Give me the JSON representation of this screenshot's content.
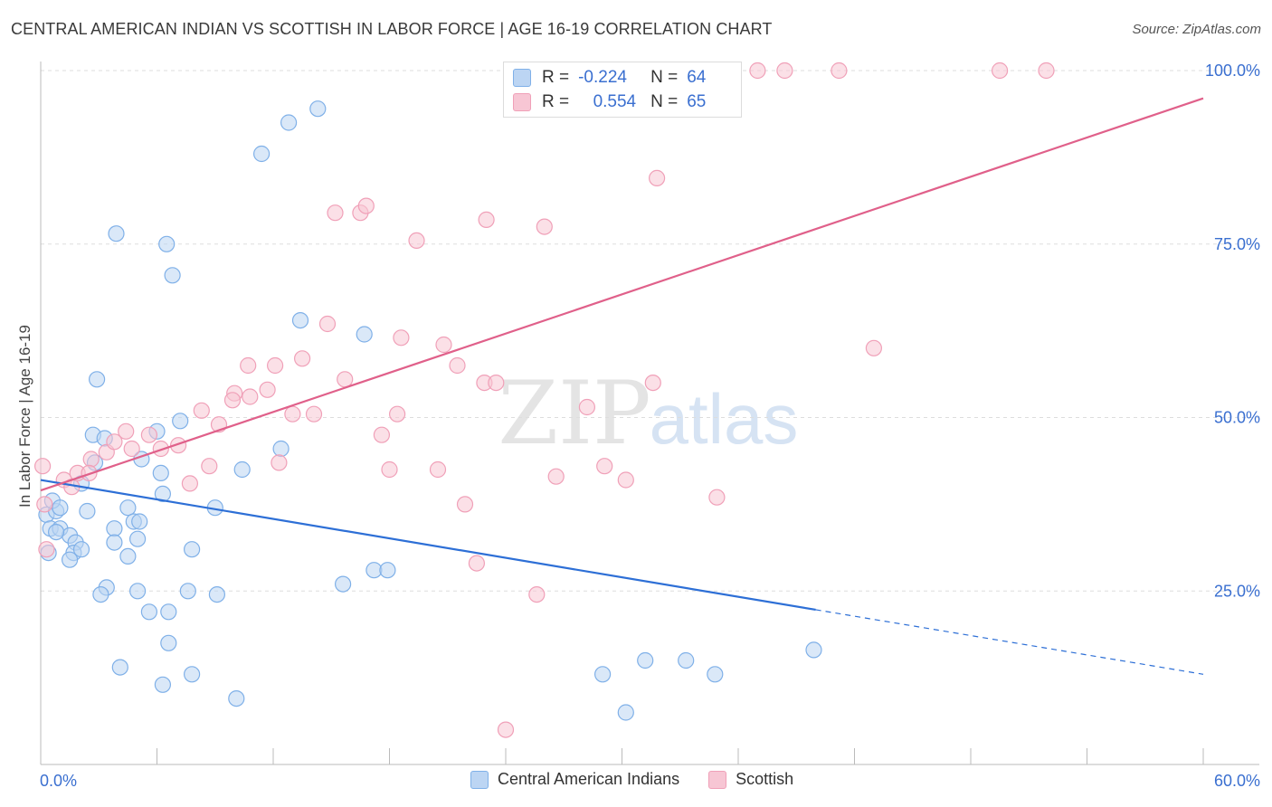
{
  "title": "CENTRAL AMERICAN INDIAN VS SCOTTISH IN LABOR FORCE | AGE 16-19 CORRELATION CHART",
  "source": "Source: ZipAtlas.com",
  "watermark": {
    "zip": "ZIP",
    "atlas": "atlas"
  },
  "stats": [
    {
      "r_label": "R =",
      "r_value": "-0.224",
      "n_label": "N =",
      "n_value": "64"
    },
    {
      "r_label": "R =",
      "r_value": "0.554",
      "n_label": "N =",
      "n_value": "65"
    }
  ],
  "chart_data": {
    "type": "scatter",
    "title": "CENTRAL AMERICAN INDIAN VS SCOTTISH IN LABOR FORCE | AGE 16-19 CORRELATION CHART",
    "xlabel": "",
    "ylabel": "In Labor Force | Age 16-19",
    "xlim": [
      0,
      60
    ],
    "ylim": [
      0,
      100
    ],
    "x_tick_labels": [
      "0.0%",
      "60.0%"
    ],
    "y_tick_labels": [
      "25.0%",
      "50.0%",
      "75.0%",
      "100.0%"
    ],
    "y_ticks": [
      25,
      50,
      75,
      100
    ],
    "grid": true,
    "legend_position": "bottom-center",
    "series": [
      {
        "name": "Central American Indians",
        "color": "#7fb0e8",
        "fill": "#bcd5f3",
        "line_color": "#2d6fd6",
        "trend": {
          "x": [
            0,
            40
          ],
          "y": [
            41,
            22.3
          ]
        },
        "trend_extension": {
          "x": [
            40,
            60
          ],
          "y": [
            22.3,
            13
          ]
        },
        "points": [
          [
            0.3,
            36
          ],
          [
            0.5,
            34
          ],
          [
            0.8,
            36.5
          ],
          [
            1,
            34
          ],
          [
            1.5,
            33
          ],
          [
            1.8,
            32
          ],
          [
            2.1,
            40.5
          ],
          [
            2.4,
            36.5
          ],
          [
            2.7,
            47.5
          ],
          [
            2.8,
            43.5
          ],
          [
            3.3,
            47
          ],
          [
            3.8,
            34
          ],
          [
            3.8,
            32
          ],
          [
            4.5,
            37
          ],
          [
            4.8,
            35
          ],
          [
            5,
            32.5
          ],
          [
            5.2,
            44
          ],
          [
            5.1,
            35
          ],
          [
            6.0,
            48
          ],
          [
            6.2,
            42
          ],
          [
            6.3,
            39
          ],
          [
            1.7,
            30.5
          ],
          [
            2.1,
            31
          ],
          [
            4.5,
            30
          ],
          [
            3.4,
            25.5
          ],
          [
            3.1,
            24.5
          ],
          [
            5.0,
            25
          ],
          [
            5.6,
            22
          ],
          [
            6.6,
            22
          ],
          [
            7.6,
            25
          ],
          [
            7.8,
            31
          ],
          [
            7.2,
            49.5
          ],
          [
            7.8,
            13
          ],
          [
            4.1,
            14
          ],
          [
            6.3,
            11.5
          ],
          [
            6.6,
            17.5
          ],
          [
            9.1,
            24.5
          ],
          [
            9.0,
            37
          ],
          [
            10.1,
            9.5
          ],
          [
            10.4,
            42.5
          ],
          [
            12.4,
            45.5
          ],
          [
            13.4,
            64
          ],
          [
            14.3,
            94.5
          ],
          [
            12.8,
            92.5
          ],
          [
            11.4,
            88
          ],
          [
            3.9,
            76.5
          ],
          [
            6.5,
            75
          ],
          [
            6.8,
            70.5
          ],
          [
            2.9,
            55.5
          ],
          [
            16.7,
            62
          ],
          [
            15.6,
            26
          ],
          [
            17.2,
            28
          ],
          [
            17.9,
            28
          ],
          [
            29.0,
            13
          ],
          [
            30.2,
            7.5
          ],
          [
            31.2,
            15
          ],
          [
            33.3,
            15
          ],
          [
            34.8,
            13
          ],
          [
            39.9,
            16.5
          ],
          [
            0.4,
            30.5
          ],
          [
            0.8,
            33.5
          ],
          [
            1.5,
            29.5
          ],
          [
            0.6,
            38
          ],
          [
            1.0,
            37
          ]
        ]
      },
      {
        "name": "Scottish",
        "color": "#f0a0b8",
        "fill": "#f7c6d4",
        "line_color": "#e0608a",
        "trend": {
          "x": [
            0,
            60
          ],
          "y": [
            39.5,
            96
          ]
        },
        "points": [
          [
            0.2,
            37.5
          ],
          [
            0.3,
            31
          ],
          [
            1.2,
            41
          ],
          [
            1.6,
            40
          ],
          [
            1.9,
            42
          ],
          [
            2.6,
            44
          ],
          [
            3.4,
            45
          ],
          [
            3.8,
            46.5
          ],
          [
            4.4,
            48
          ],
          [
            4.7,
            45.5
          ],
          [
            5.6,
            47.5
          ],
          [
            6.2,
            45.5
          ],
          [
            7.1,
            46
          ],
          [
            7.7,
            40.5
          ],
          [
            8.7,
            43
          ],
          [
            9.2,
            49
          ],
          [
            8.3,
            51
          ],
          [
            10.0,
            53.5
          ],
          [
            9.9,
            52.5
          ],
          [
            10.8,
            53
          ],
          [
            10.7,
            57.5
          ],
          [
            11.7,
            54
          ],
          [
            12.1,
            57.5
          ],
          [
            12.3,
            43.5
          ],
          [
            13.0,
            50.5
          ],
          [
            13.5,
            58.5
          ],
          [
            14.1,
            50.5
          ],
          [
            14.8,
            63.5
          ],
          [
            15.7,
            55.5
          ],
          [
            17.6,
            47.5
          ],
          [
            18.0,
            42.5
          ],
          [
            18.4,
            50.5
          ],
          [
            18.6,
            61.5
          ],
          [
            19.4,
            75.5
          ],
          [
            20.5,
            42.5
          ],
          [
            20.8,
            60.5
          ],
          [
            21.5,
            57.5
          ],
          [
            21.9,
            37.5
          ],
          [
            22.5,
            29
          ],
          [
            22.9,
            55
          ],
          [
            23.5,
            55
          ],
          [
            23.0,
            78.5
          ],
          [
            24.0,
            5
          ],
          [
            25.6,
            24.5
          ],
          [
            26.0,
            77.5
          ],
          [
            26.6,
            41.5
          ],
          [
            28.2,
            51.5
          ],
          [
            29.1,
            43
          ],
          [
            30.2,
            41
          ],
          [
            31.6,
            55
          ],
          [
            31.8,
            84.5
          ],
          [
            34.9,
            38.5
          ],
          [
            37.0,
            100
          ],
          [
            38.4,
            100
          ],
          [
            41.2,
            100
          ],
          [
            43.0,
            60
          ],
          [
            49.5,
            100
          ],
          [
            51.9,
            100
          ],
          [
            15.2,
            79.5
          ],
          [
            16.5,
            79.5
          ],
          [
            16.8,
            80.5
          ],
          [
            24.5,
            100
          ],
          [
            27.9,
            100
          ],
          [
            0.1,
            43
          ],
          [
            2.5,
            42
          ]
        ]
      }
    ]
  }
}
